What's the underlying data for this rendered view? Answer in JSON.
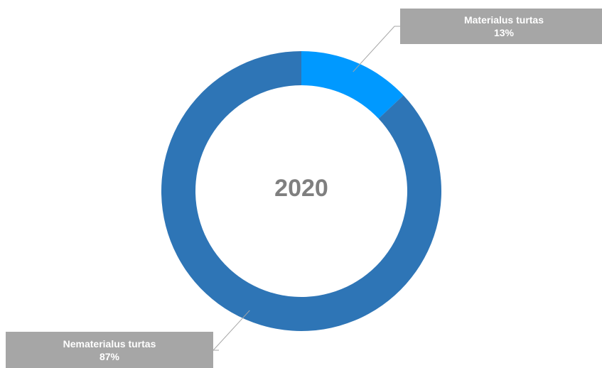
{
  "chart_data": {
    "type": "pie",
    "subtype": "donut",
    "center_label": "2020",
    "slices": [
      {
        "label": "Materialus turtas",
        "value": 13,
        "value_label": "13%",
        "color": "#0099ff"
      },
      {
        "label": "Nematerialus turtas",
        "value": 87,
        "value_label": "87%",
        "color": "#2e75b6"
      }
    ],
    "callout_color": "#a6a6a6",
    "legend": "none"
  }
}
